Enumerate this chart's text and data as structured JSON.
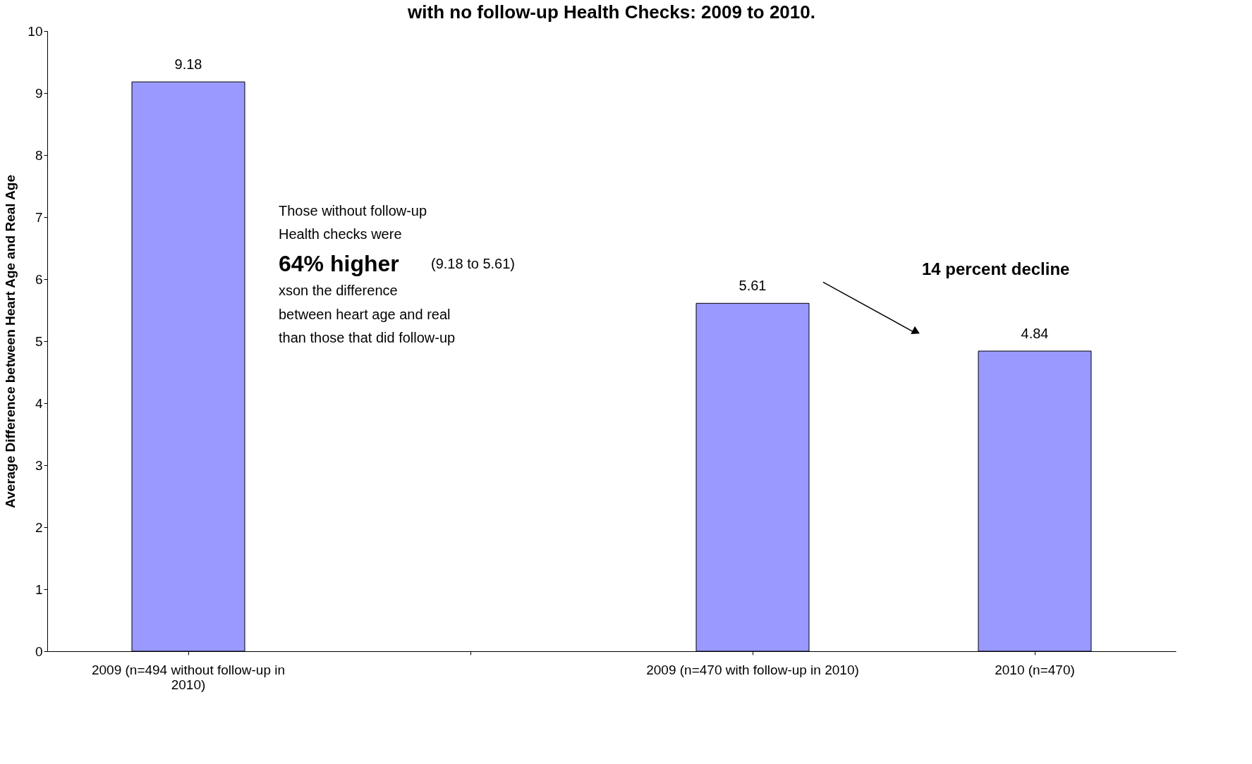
{
  "chart_data": {
    "type": "bar",
    "title": "with no follow-up Health Checks: 2009 to 2010.",
    "ylabel": "Average Difference between Heart Age and Real Age",
    "categories": [
      "2009 (n=494 without follow-up in 2010)",
      null,
      "2009 (n=470 with follow-up in 2010)",
      "2010 (n=470)"
    ],
    "values": [
      9.18,
      null,
      5.61,
      4.84
    ],
    "color": "#9999ff",
    "ylim": [
      0,
      10
    ],
    "yticks": [
      0,
      1,
      2,
      3,
      4,
      5,
      6,
      7,
      8,
      9,
      10
    ],
    "grid": false,
    "data_labels": true,
    "annotations": [
      "Those without follow-up",
      "Health checks were",
      "64% higher",
      "(9.18 to 5.61)",
      "xson the difference",
      "between heart age and real",
      "than those that did follow-up",
      "14 percent decline"
    ]
  }
}
